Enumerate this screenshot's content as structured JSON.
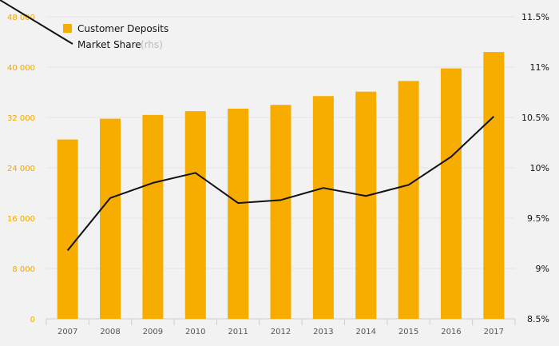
{
  "chart_data": {
    "type": "bar+line",
    "categories": [
      "2007",
      "2008",
      "2009",
      "2010",
      "2011",
      "2012",
      "2013",
      "2014",
      "2015",
      "2016",
      "2017"
    ],
    "series": [
      {
        "name": "Customer Deposits",
        "kind": "bar",
        "axis": "left",
        "color": "#f7ad00",
        "values": [
          28500,
          31800,
          32400,
          33000,
          33400,
          34000,
          35400,
          36100,
          37800,
          39800,
          42400
        ]
      },
      {
        "name": "Market Share",
        "legend_suffix": "(rhs)",
        "kind": "line",
        "axis": "right",
        "color": "#111111",
        "values": [
          9.18,
          9.7,
          9.85,
          9.95,
          9.65,
          9.68,
          9.8,
          9.72,
          9.83,
          10.11,
          10.51
        ]
      }
    ],
    "y_left": {
      "ylim": [
        0,
        48000
      ],
      "ticks": [
        0,
        8000,
        16000,
        24000,
        32000,
        40000,
        48000
      ],
      "tick_labels": [
        "0",
        "8 000",
        "16 000",
        "24 000",
        "32 000",
        "40 000",
        "48 000"
      ],
      "tick_color": "#f0a800"
    },
    "y_right": {
      "ylim": [
        8.5,
        11.5
      ],
      "ticks": [
        8.5,
        9,
        9.5,
        10,
        10.5,
        11,
        11.5
      ],
      "tick_labels": [
        "8.5%",
        "9%",
        "9.5%",
        "10%",
        "10.5%",
        "11%",
        "11.5%"
      ]
    },
    "grid": true,
    "legend": "top-left"
  }
}
